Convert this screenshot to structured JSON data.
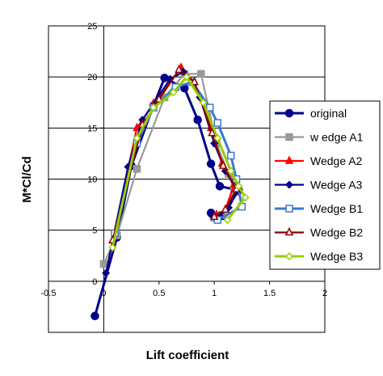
{
  "chart_data": {
    "type": "line",
    "title": "",
    "xlabel": "Lift coefficient",
    "ylabel": "M*Cl/Cd",
    "xlim": [
      -0.5,
      2
    ],
    "ylim": [
      -5,
      25
    ],
    "x_ticks": [
      -0.5,
      0,
      0.5,
      1,
      1.5,
      2
    ],
    "x_tick_labels": [
      "-0.5",
      "0",
      "0.5",
      "1",
      "1.5",
      "2"
    ],
    "y_ticks": [
      0,
      5,
      10,
      15,
      20,
      25
    ],
    "y_tick_labels": [
      "0",
      "5",
      "10",
      "15",
      "20",
      "25"
    ],
    "grid": "horizontal-major",
    "legend_position": "right",
    "series": [
      {
        "name": "original",
        "color": "#00008B",
        "marker": "circle",
        "x": [
          -0.08,
          0.12,
          0.25,
          0.45,
          0.55,
          0.73,
          0.85,
          0.97,
          1.05,
          1.22,
          1.07,
          0.97
        ],
        "y": [
          -3.4,
          4.3,
          11.3,
          17.2,
          19.9,
          18.9,
          15.8,
          11.5,
          9.3,
          8.9,
          6.4,
          6.7
        ]
      },
      {
        "name": "w edge A1",
        "color": "#999999",
        "marker": "square",
        "x": [
          0.0,
          0.12,
          0.3,
          0.55,
          0.73,
          0.88,
          1.02,
          1.13,
          1.18,
          1.07,
          1.0
        ],
        "y": [
          1.7,
          4.5,
          11.0,
          18.0,
          20.3,
          20.3,
          13.5,
          10.5,
          9.0,
          6.5,
          6.2
        ]
      },
      {
        "name": "Wedge A2",
        "color": "#FF0000",
        "marker": "triangle",
        "x": [
          0.08,
          0.3,
          0.45,
          0.7,
          0.82,
          0.97,
          1.07,
          1.18,
          1.1,
          1.02
        ],
        "y": [
          4.0,
          15.0,
          17.4,
          20.9,
          19.5,
          15.0,
          11.5,
          9.5,
          7.0,
          6.5
        ]
      },
      {
        "name": "Wedge A3",
        "color": "#00008B",
        "marker": "diamond",
        "x": [
          0.02,
          0.22,
          0.35,
          0.6,
          0.72,
          0.87,
          1.0,
          1.1,
          1.21,
          1.13,
          1.05,
          0.98
        ],
        "y": [
          0.8,
          11.2,
          15.8,
          19.8,
          20.5,
          18.0,
          13.5,
          10.8,
          8.8,
          7.2,
          6.4,
          6.4
        ]
      },
      {
        "name": "Wedge B1",
        "color": "#3A78D4",
        "marker": "open-square",
        "x": [
          0.1,
          0.3,
          0.45,
          0.65,
          0.8,
          0.96,
          1.03,
          1.15,
          1.2,
          1.25,
          1.03
        ],
        "y": [
          4.7,
          13.5,
          17.0,
          19.0,
          19.5,
          17.0,
          15.5,
          12.3,
          10.0,
          7.3,
          6.0
        ]
      },
      {
        "name": "Wedge B2",
        "color": "#8B0000",
        "marker": "open-triangle",
        "x": [
          0.08,
          0.35,
          0.5,
          0.68,
          0.82,
          0.98,
          1.08,
          1.2,
          1.1,
          1.0
        ],
        "y": [
          4.0,
          15.3,
          17.8,
          20.7,
          19.5,
          14.5,
          11.3,
          9.0,
          7.0,
          6.3
        ]
      },
      {
        "name": "Wedge B3",
        "color": "#99CC00",
        "marker": "open-diamond",
        "x": [
          0.08,
          0.3,
          0.45,
          0.63,
          0.75,
          0.9,
          1.03,
          1.15,
          1.22,
          1.28,
          1.12
        ],
        "y": [
          3.3,
          14.0,
          17.0,
          18.5,
          20.0,
          17.5,
          14.0,
          10.8,
          9.3,
          8.2,
          6.0
        ]
      }
    ]
  }
}
